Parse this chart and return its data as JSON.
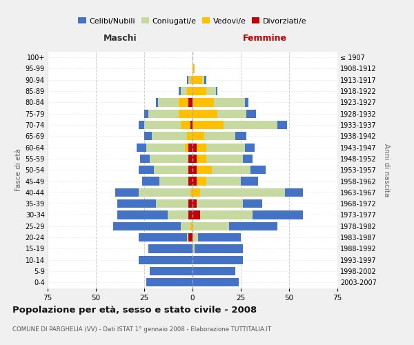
{
  "age_groups": [
    "0-4",
    "5-9",
    "10-14",
    "15-19",
    "20-24",
    "25-29",
    "30-34",
    "35-39",
    "40-44",
    "45-49",
    "50-54",
    "55-59",
    "60-64",
    "65-69",
    "70-74",
    "75-79",
    "80-84",
    "85-89",
    "90-94",
    "95-99",
    "100+"
  ],
  "birth_years": [
    "2003-2007",
    "1998-2002",
    "1993-1997",
    "1988-1992",
    "1983-1987",
    "1978-1982",
    "1973-1977",
    "1968-1972",
    "1963-1967",
    "1958-1962",
    "1953-1957",
    "1948-1952",
    "1943-1947",
    "1938-1942",
    "1933-1937",
    "1928-1932",
    "1923-1927",
    "1918-1922",
    "1913-1917",
    "1908-1912",
    "≤ 1907"
  ],
  "male_celibi": [
    24,
    22,
    28,
    23,
    25,
    35,
    26,
    20,
    12,
    9,
    8,
    5,
    5,
    4,
    3,
    2,
    1,
    1,
    1,
    0,
    0
  ],
  "male_coniugati": [
    0,
    0,
    0,
    0,
    1,
    5,
    11,
    17,
    27,
    15,
    18,
    20,
    20,
    18,
    19,
    16,
    11,
    3,
    1,
    0,
    0
  ],
  "male_vedovi": [
    0,
    0,
    0,
    0,
    0,
    1,
    0,
    0,
    1,
    0,
    0,
    0,
    2,
    3,
    5,
    7,
    5,
    3,
    1,
    0,
    0
  ],
  "male_divorziati": [
    0,
    0,
    0,
    0,
    2,
    0,
    2,
    2,
    0,
    2,
    2,
    2,
    2,
    0,
    1,
    0,
    2,
    0,
    0,
    0,
    0
  ],
  "female_celibi": [
    24,
    22,
    26,
    25,
    22,
    25,
    26,
    10,
    9,
    9,
    8,
    5,
    5,
    6,
    5,
    5,
    2,
    1,
    1,
    0,
    0
  ],
  "female_coniugati": [
    0,
    0,
    0,
    1,
    3,
    19,
    27,
    24,
    44,
    18,
    20,
    19,
    20,
    16,
    28,
    15,
    16,
    5,
    1,
    0,
    0
  ],
  "female_vedovi": [
    0,
    0,
    0,
    0,
    0,
    0,
    0,
    0,
    4,
    5,
    8,
    5,
    5,
    6,
    16,
    13,
    11,
    7,
    5,
    1,
    0
  ],
  "female_divorziati": [
    0,
    0,
    0,
    0,
    0,
    0,
    4,
    2,
    0,
    2,
    2,
    2,
    2,
    0,
    0,
    0,
    0,
    0,
    0,
    0,
    0
  ],
  "color_celibi": "#4472c4",
  "color_coniugati": "#c5d9a0",
  "color_vedovi": "#ffc000",
  "color_divorziati": "#c0000b",
  "title": "Popolazione per età, sesso e stato civile - 2008",
  "subtitle": "COMUNE DI PARGHELIA (VV) - Dati ISTAT 1° gennaio 2008 - Elaborazione TUTTITALIA.IT",
  "xlabel_left": "Maschi",
  "xlabel_right": "Femmine",
  "ylabel_left": "Fasce di età",
  "ylabel_right": "Anni di nascita",
  "xlim": 75,
  "bg_color": "#f0f0f0",
  "plot_bg": "#ffffff",
  "grid_color": "#cccccc"
}
